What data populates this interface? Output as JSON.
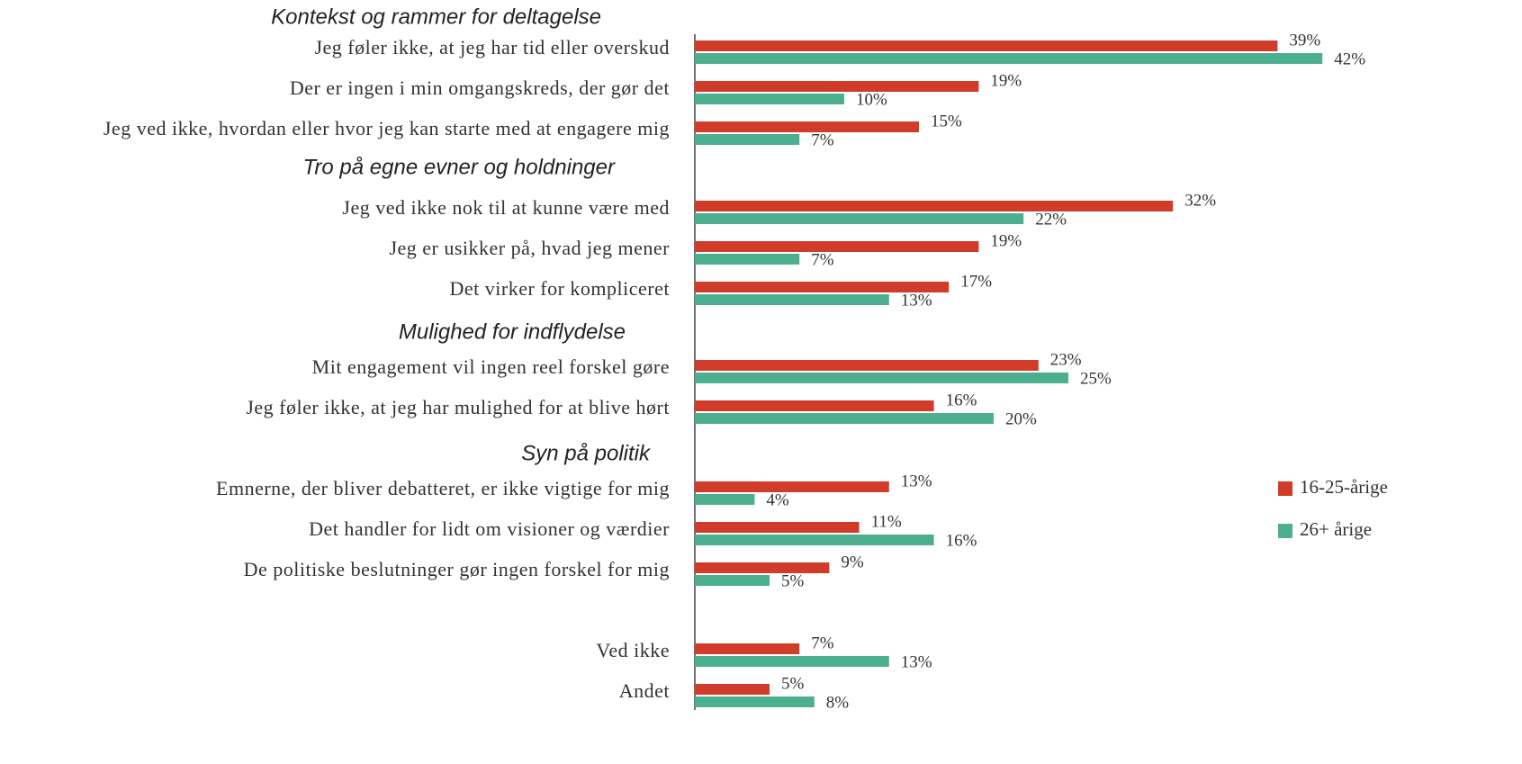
{
  "chart_data": {
    "type": "hbar",
    "annotations": [
      "Kontekst og rammer for deltagelse",
      "Tro på egne evner og holdninger",
      "Mulighed for indflydelse",
      "Syn på politik"
    ],
    "categories": [
      "Jeg føler ikke, at jeg har tid eller overskud",
      "Der er ingen i min omgangskreds, der gør det",
      "Jeg ved ikke, hvordan eller hvor jeg kan starte med at engagere mig",
      "Jeg ved ikke nok til at kunne være med",
      "Jeg er usikker på, hvad jeg mener",
      "Det virker for kompliceret",
      "Mit engagement vil ingen reel forskel gøre",
      "Jeg føler ikke, at jeg har mulighed for at blive hørt",
      "Emnerne, der bliver debatteret, er ikke vigtige for mig",
      "Det handler for lidt om visioner og værdier",
      "De politiske beslutninger gør ingen forskel for mig",
      "Ved ikke",
      "Andet"
    ],
    "series": [
      {
        "name": "16-25-årige",
        "color": "#d13b2a",
        "values": [
          39,
          19,
          15,
          32,
          19,
          17,
          23,
          16,
          13,
          11,
          9,
          7,
          5
        ],
        "value_labels": [
          "39%",
          "19%",
          "15%",
          "32%",
          "19%",
          "17%",
          "23%",
          "16%",
          "13%",
          "11%",
          "9%",
          "7%",
          "5%"
        ]
      },
      {
        "name": "26+ årige",
        "color": "#4caf8f",
        "values": [
          42,
          10,
          7,
          22,
          7,
          13,
          25,
          20,
          4,
          16,
          5,
          13,
          8
        ],
        "value_labels": [
          "42%",
          "10%",
          "7%",
          "22%",
          "7%",
          "13%",
          "25%",
          "20%",
          "4%",
          "16%",
          "5%",
          "13%",
          "8%"
        ]
      }
    ],
    "xlim": [
      0,
      50
    ],
    "legend": "right"
  }
}
